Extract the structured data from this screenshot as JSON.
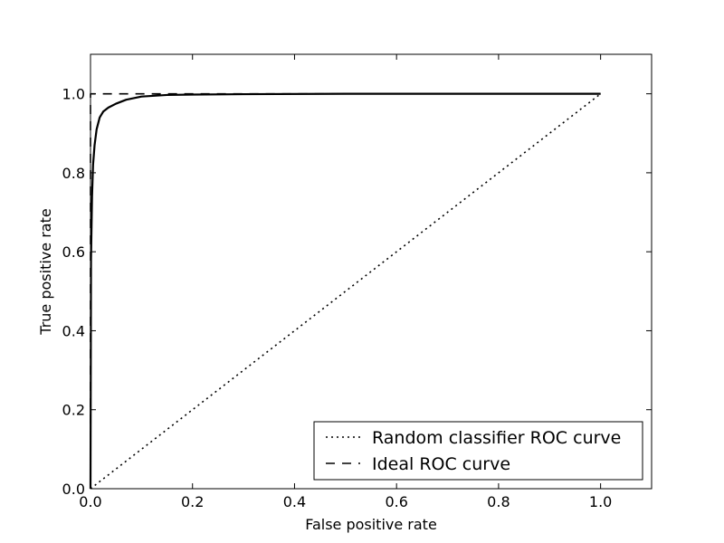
{
  "chart_data": {
    "type": "line",
    "title": "",
    "xlabel": "False positive rate",
    "ylabel": "True positive rate",
    "xlim": [
      0.0,
      1.1
    ],
    "ylim": [
      0.0,
      1.1
    ],
    "xticks": [
      0.0,
      0.2,
      0.4,
      0.6,
      0.8,
      1.0
    ],
    "yticks": [
      0.0,
      0.2,
      0.4,
      0.6,
      0.8,
      1.0
    ],
    "xtick_labels": [
      "0.0",
      "0.2",
      "0.4",
      "0.6",
      "0.8",
      "1.0"
    ],
    "ytick_labels": [
      "0.0",
      "0.2",
      "0.4",
      "0.6",
      "0.8",
      "1.0"
    ],
    "grid": false,
    "legend_position": "bottom-right",
    "series": [
      {
        "name": "Random classifier ROC curve",
        "style": "dotted",
        "color": "#000000",
        "x": [
          0.0,
          1.0
        ],
        "y": [
          0.0,
          1.0
        ]
      },
      {
        "name": "Ideal ROC curve",
        "style": "dashed",
        "color": "#000000",
        "x": [
          0.0,
          0.0,
          1.0
        ],
        "y": [
          0.0,
          1.0,
          1.0
        ]
      },
      {
        "style": "solid",
        "color": "#000000",
        "x": [
          0.0,
          0.001,
          0.003,
          0.005,
          0.008,
          0.012,
          0.018,
          0.025,
          0.035,
          0.05,
          0.07,
          0.1,
          0.15,
          0.2,
          0.3,
          0.5,
          1.0
        ],
        "y": [
          0.0,
          0.58,
          0.74,
          0.82,
          0.87,
          0.91,
          0.94,
          0.955,
          0.965,
          0.975,
          0.985,
          0.993,
          0.997,
          0.998,
          0.999,
          1.0,
          1.0
        ]
      }
    ]
  }
}
